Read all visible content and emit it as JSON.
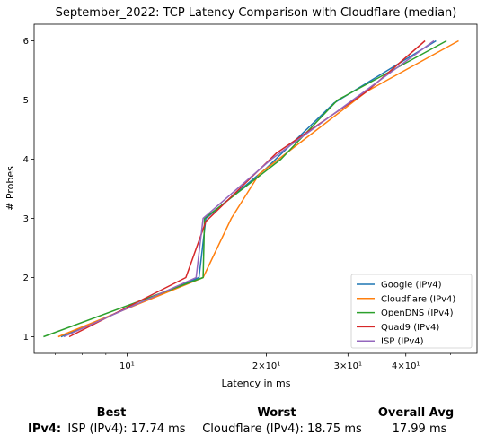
{
  "chart_data": {
    "type": "line",
    "title": "September_2022: TCP Latency Comparison with Cloudflare (median)",
    "xlabel": "Latency in ms",
    "ylabel": "# Probes",
    "xscale": "log",
    "xlim": [
      6.3,
      57
    ],
    "ylim": [
      0.72,
      6.28
    ],
    "xticks": [
      {
        "value": 10,
        "label": "10¹"
      },
      {
        "value": 20,
        "label": "2×10¹"
      },
      {
        "value": 30,
        "label": "3×10¹"
      },
      {
        "value": 40,
        "label": "4×10¹"
      }
    ],
    "yticks": [
      1,
      2,
      3,
      4,
      5,
      6
    ],
    "grid": false,
    "legend": "bottom-right",
    "series": [
      {
        "name": "Google (IPv4)",
        "color": "#1f77b4",
        "x": [
          7.2,
          14.3,
          14.8,
          20.0,
          28.0,
          46.5
        ],
        "y": [
          1,
          2,
          3,
          3.85,
          4.95,
          6
        ]
      },
      {
        "name": "Cloudflare (IPv4)",
        "color": "#ff7f0e",
        "x": [
          7.1,
          14.6,
          16.8,
          19.3,
          33.0,
          52.0
        ],
        "y": [
          1,
          2,
          3,
          3.75,
          5.15,
          6
        ]
      },
      {
        "name": "OpenDNS (IPv4)",
        "color": "#2ca02c",
        "x": [
          6.6,
          14.6,
          14.7,
          21.5,
          28.5,
          49.0
        ],
        "y": [
          1,
          2,
          3,
          4,
          5,
          6
        ]
      },
      {
        "name": "Quad9 (IPv4)",
        "color": "#d62728",
        "x": [
          7.5,
          13.4,
          14.8,
          21.0,
          33.0,
          44.0
        ],
        "y": [
          1,
          2,
          2.95,
          4.1,
          5.15,
          6
        ]
      },
      {
        "name": "ISP (IPv4)",
        "color": "#9467bd",
        "x": [
          7.3,
          14.1,
          14.6,
          20.5,
          29.5,
          46.0
        ],
        "y": [
          1,
          2,
          3,
          4,
          4.9,
          6
        ]
      }
    ]
  },
  "stats": {
    "best_header": "Best",
    "worst_header": "Worst",
    "avg_header": "Overall Avg",
    "row_label": "IPv4:",
    "best_value": "ISP (IPv4): 17.74 ms",
    "worst_value": "Cloudflare (IPv4): 18.75 ms",
    "avg_value": "17.99 ms"
  }
}
